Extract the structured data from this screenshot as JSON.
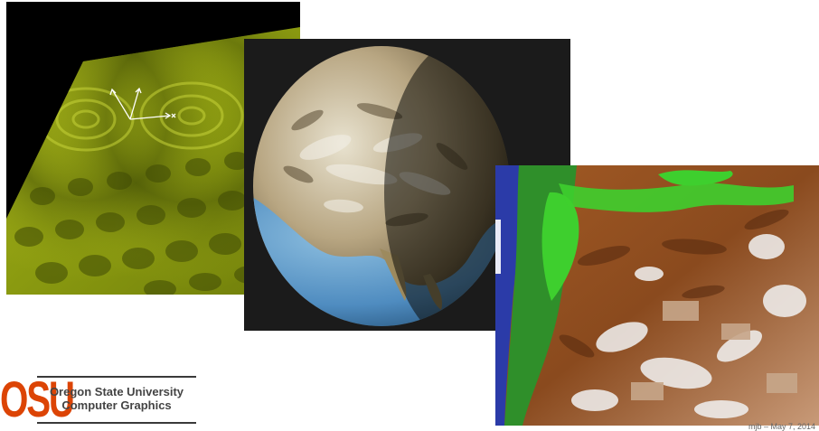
{
  "institution": {
    "logo_text": "OSU",
    "name_line1": "Oregon State University",
    "name_line2": "Computer Graphics"
  },
  "images": [
    {
      "subject": "wave-interference-surface"
    },
    {
      "subject": "earth-globe-relief"
    },
    {
      "subject": "oregon-terrain-elevation-map"
    }
  ],
  "footer": {
    "slide_meta": "mjb – May 7, 2014"
  },
  "colors": {
    "osu_orange": "#dc4405",
    "wave_green": "#8a9a10",
    "ocean_blue": "#4f8cc0",
    "terrain_brown": "#9a5422",
    "terrain_green": "#3ecf2e",
    "pacific_blue": "#2b3ba8"
  }
}
